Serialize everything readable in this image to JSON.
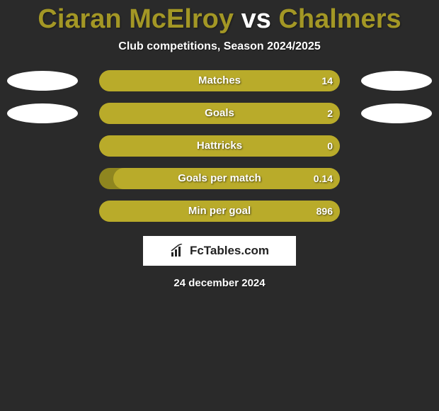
{
  "background_color": "#2a2a2a",
  "title": {
    "text_left": "Ciaran McElroy",
    "text_vs": " vs ",
    "text_right": "Chalmers",
    "color_left": "#a39725",
    "color_vs": "#ffffff",
    "color_right": "#a39725",
    "fontsize": 38
  },
  "subtitle": {
    "text": "Club competitions, Season 2024/2025",
    "color": "#ffffff",
    "fontsize": 16
  },
  "bar_colors": {
    "track": "#8f861f",
    "fill": "#b9ab2a"
  },
  "ellipse_color": "#ffffff",
  "stats": [
    {
      "label": "Matches",
      "value": "14",
      "fill_percent": 100,
      "show_left_ellipse": true,
      "show_right_ellipse": true
    },
    {
      "label": "Goals",
      "value": "2",
      "fill_percent": 100,
      "show_left_ellipse": true,
      "show_right_ellipse": true
    },
    {
      "label": "Hattricks",
      "value": "0",
      "fill_percent": 100,
      "show_left_ellipse": false,
      "show_right_ellipse": false
    },
    {
      "label": "Goals per match",
      "value": "0.14",
      "fill_percent": 94,
      "show_left_ellipse": false,
      "show_right_ellipse": false
    },
    {
      "label": "Min per goal",
      "value": "896",
      "fill_percent": 100,
      "show_left_ellipse": false,
      "show_right_ellipse": false
    }
  ],
  "brand": {
    "text": "FcTables.com",
    "text_color": "#222222",
    "bg_color": "#ffffff",
    "fontsize": 17
  },
  "date": {
    "text": "24 december 2024",
    "color": "#ffffff",
    "fontsize": 15
  }
}
